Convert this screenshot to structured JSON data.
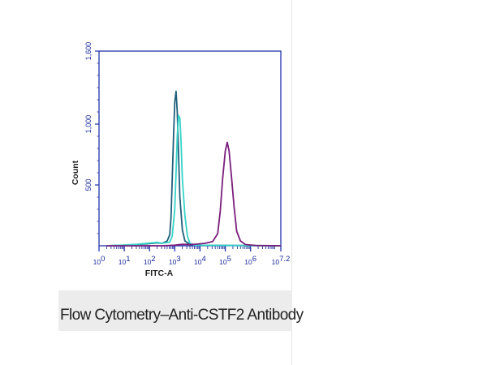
{
  "caption": "Flow Cytometry–Anti-CSTF2 Antibody",
  "chart_data": {
    "type": "line",
    "title": "",
    "xlabel": "FITC-A",
    "ylabel": "Count",
    "xscale": "log",
    "xlim": [
      0,
      7.2
    ],
    "ylim": [
      0,
      1600
    ],
    "x_ticks": [
      {
        "v": 0,
        "base": "10",
        "exp": "0"
      },
      {
        "v": 1,
        "base": "10",
        "exp": "1"
      },
      {
        "v": 2,
        "base": "10",
        "exp": "2"
      },
      {
        "v": 3,
        "base": "10",
        "exp": "3"
      },
      {
        "v": 4,
        "base": "10",
        "exp": "4"
      },
      {
        "v": 5,
        "base": "10",
        "exp": "5"
      },
      {
        "v": 6,
        "base": "10",
        "exp": "6"
      },
      {
        "v": 7.2,
        "base": "10",
        "exp": "7.2"
      }
    ],
    "y_ticks": [
      {
        "v": 500,
        "label": "500"
      },
      {
        "v": 1000,
        "label": "1,000"
      },
      {
        "v": 1600,
        "label": "1,600"
      }
    ],
    "legend": "none",
    "grid": false,
    "series": [
      {
        "color": "#1f5f7a",
        "points": [
          [
            0.3,
            0
          ],
          [
            1.0,
            5
          ],
          [
            1.5,
            10
          ],
          [
            2.0,
            18
          ],
          [
            2.3,
            25
          ],
          [
            2.5,
            20
          ],
          [
            2.7,
            40
          ],
          [
            2.8,
            90
          ],
          [
            2.85,
            230
          ],
          [
            2.9,
            550
          ],
          [
            2.95,
            900
          ],
          [
            3.0,
            1180
          ],
          [
            3.05,
            1270
          ],
          [
            3.1,
            1100
          ],
          [
            3.15,
            750
          ],
          [
            3.2,
            400
          ],
          [
            3.3,
            130
          ],
          [
            3.4,
            40
          ],
          [
            3.6,
            10
          ],
          [
            4.0,
            5
          ],
          [
            7.2,
            0
          ]
        ]
      },
      {
        "color": "#35d3c8",
        "points": [
          [
            0.3,
            0
          ],
          [
            1.0,
            6
          ],
          [
            1.5,
            12
          ],
          [
            2.0,
            22
          ],
          [
            2.3,
            28
          ],
          [
            2.5,
            20
          ],
          [
            2.8,
            30
          ],
          [
            2.9,
            80
          ],
          [
            3.0,
            300
          ],
          [
            3.05,
            600
          ],
          [
            3.1,
            900
          ],
          [
            3.15,
            1070
          ],
          [
            3.2,
            1050
          ],
          [
            3.25,
            850
          ],
          [
            3.3,
            550
          ],
          [
            3.4,
            250
          ],
          [
            3.5,
            80
          ],
          [
            3.6,
            20
          ],
          [
            3.8,
            5
          ],
          [
            7.2,
            0
          ]
        ]
      },
      {
        "color": "#7a1e7c",
        "points": [
          [
            0.3,
            0
          ],
          [
            2.5,
            0
          ],
          [
            3.0,
            5
          ],
          [
            3.3,
            12
          ],
          [
            3.6,
            10
          ],
          [
            3.9,
            14
          ],
          [
            4.2,
            20
          ],
          [
            4.5,
            35
          ],
          [
            4.7,
            100
          ],
          [
            4.8,
            280
          ],
          [
            4.9,
            560
          ],
          [
            5.0,
            780
          ],
          [
            5.08,
            850
          ],
          [
            5.15,
            780
          ],
          [
            5.25,
            560
          ],
          [
            5.35,
            320
          ],
          [
            5.45,
            120
          ],
          [
            5.6,
            40
          ],
          [
            5.8,
            10
          ],
          [
            6.2,
            3
          ],
          [
            7.2,
            0
          ]
        ]
      }
    ]
  }
}
